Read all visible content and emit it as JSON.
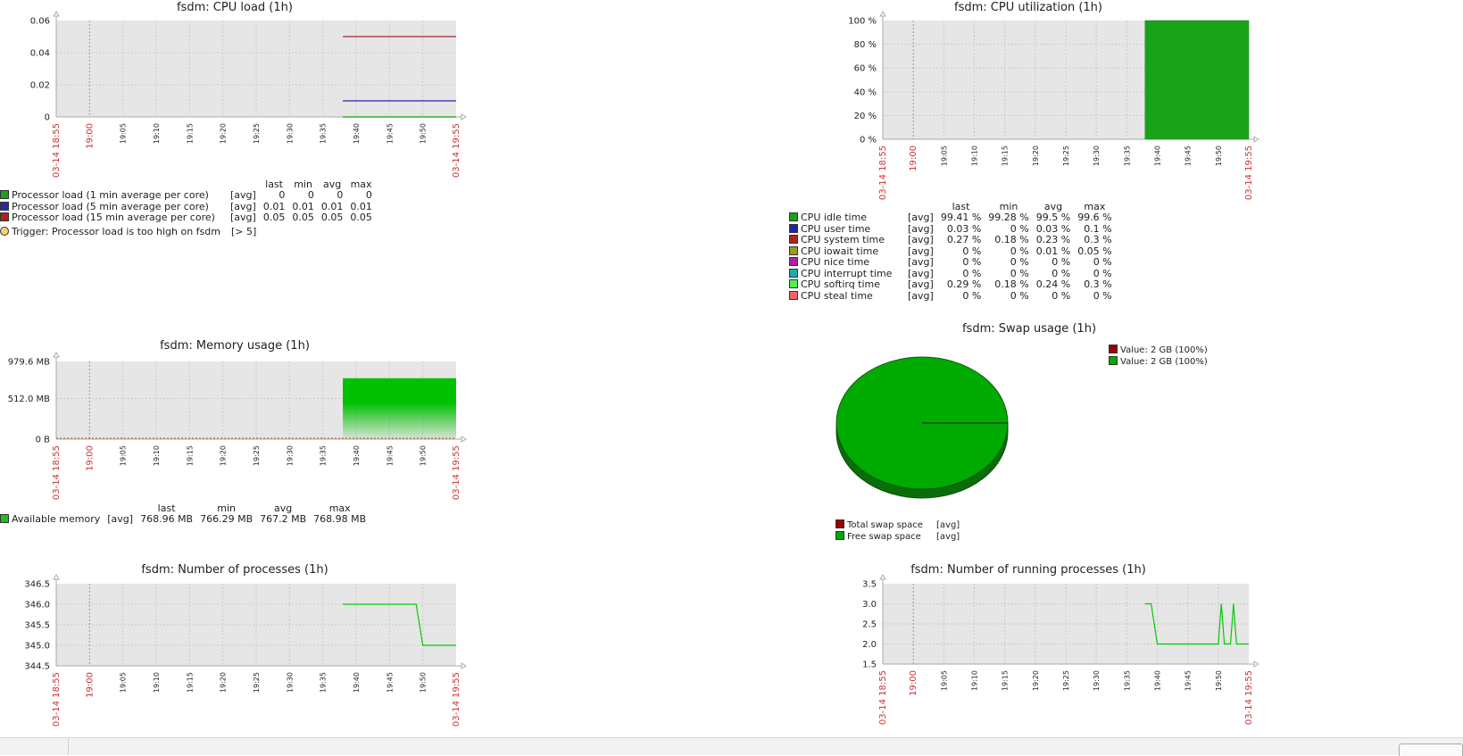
{
  "time_ticks": [
    "19:00",
    "19:05",
    "19:10",
    "19:15",
    "19:20",
    "19:25",
    "19:30",
    "19:35",
    "19:40",
    "19:45",
    "19:50"
  ],
  "time_start": "03-14 18:55",
  "time_end": "03-14 19:55",
  "colors": {
    "plot_bg": "#e6e6e6",
    "grid": "#c9c9c9",
    "red": "#cc3333",
    "green": "#1aa31a",
    "blue": "#2b2b9f",
    "darkred": "#aa2222"
  },
  "chart_data": [
    {
      "id": "cpu_load",
      "type": "line",
      "title": "fsdm: CPU load (1h)",
      "y_ticks": [
        "0",
        "0.02",
        "0.04",
        "0.06"
      ],
      "ylim": [
        0,
        0.06
      ],
      "x_range": [
        "18:55",
        "19:55"
      ],
      "series": [
        {
          "name": "Processor load (1 min average per core)",
          "color": "#00aa00",
          "x": [
            "19:38",
            "19:55"
          ],
          "y": [
            0,
            0
          ]
        },
        {
          "name": "Processor load (5 min average per core)",
          "color": "#2222aa",
          "x": [
            "19:38",
            "19:55"
          ],
          "y": [
            0.01,
            0.01
          ]
        },
        {
          "name": "Processor load (15 min average per core)",
          "color": "#aa2222",
          "x": [
            "19:38",
            "19:55"
          ],
          "y": [
            0.05,
            0.05
          ]
        }
      ]
    },
    {
      "id": "cpu_util",
      "type": "area",
      "title": "fsdm: CPU utilization (1h)",
      "y_ticks": [
        "0 %",
        "20 %",
        "40 %",
        "60 %",
        "80 %",
        "100 %"
      ],
      "ylim": [
        0,
        100
      ],
      "x_range": [
        "18:55",
        "19:55"
      ],
      "series": [
        {
          "name": "CPU idle time",
          "color": "#1aa31a",
          "x": [
            "19:38",
            "19:55"
          ],
          "y": [
            100,
            100
          ]
        }
      ]
    },
    {
      "id": "memory",
      "type": "area",
      "title": "fsdm: Memory usage (1h)",
      "y_ticks": [
        "0 B",
        "512.0 MB",
        "979.6 MB"
      ],
      "ylim": [
        0,
        979.6
      ],
      "x_range": [
        "18:55",
        "19:55"
      ],
      "series": [
        {
          "name": "Available memory",
          "color": "#00c000",
          "x": [
            "19:38",
            "19:55"
          ],
          "y": [
            768.96,
            768.96
          ]
        }
      ]
    },
    {
      "id": "swap",
      "type": "pie",
      "title": "fsdm: Swap usage (1h)",
      "slices": [
        {
          "name": "Total swap space",
          "label": "Value: 2 GB (100%)",
          "color": "#990000",
          "value": 0
        },
        {
          "name": "Free swap space",
          "label": "Value: 2 GB (100%)",
          "color": "#00aa00",
          "value": 100
        }
      ]
    },
    {
      "id": "processes",
      "type": "line",
      "title": "fsdm: Number of processes (1h)",
      "y_ticks": [
        "344.5",
        "345.0",
        "345.5",
        "346.0",
        "346.5"
      ],
      "ylim": [
        344.5,
        346.5
      ],
      "x_range": [
        "18:55",
        "19:55"
      ],
      "series": [
        {
          "name": "Number of processes",
          "color": "#00cc00",
          "x": [
            "19:38",
            "19:49",
            "19:50",
            "19:55"
          ],
          "y": [
            346,
            346,
            345,
            345
          ]
        }
      ]
    },
    {
      "id": "running",
      "type": "line",
      "title": "fsdm: Number of running processes (1h)",
      "y_ticks": [
        "1.5",
        "2.0",
        "2.5",
        "3.0",
        "3.5"
      ],
      "ylim": [
        1.5,
        3.5
      ],
      "x_range": [
        "18:55",
        "19:55"
      ],
      "series": [
        {
          "name": "Number of running processes",
          "color": "#00cc00",
          "x": [
            "19:38",
            "19:39",
            "19:40",
            "19:49",
            "19:50",
            "19:50.5",
            "19:51",
            "19:51.5",
            "19:52",
            "19:52.5",
            "19:53",
            "19:53.7",
            "19:55"
          ],
          "y": [
            3,
            3,
            2,
            2,
            2,
            3,
            2,
            2,
            2,
            3,
            2,
            2,
            2
          ]
        }
      ]
    }
  ],
  "legends": {
    "cpu_load": {
      "headers": [
        "last",
        "min",
        "avg",
        "max"
      ],
      "rows": [
        {
          "color": "#1aa31a",
          "name": "Processor load (1 min average per core)",
          "fn": "[avg]",
          "last": "0",
          "min": "0",
          "avg": "0",
          "max": "0"
        },
        {
          "color": "#2b2b9f",
          "name": "Processor load (5 min average per core)",
          "fn": "[avg]",
          "last": "0.01",
          "min": "0.01",
          "avg": "0.01",
          "max": "0.01"
        },
        {
          "color": "#aa2222",
          "name": "Processor load (15 min average per core)",
          "fn": "[avg]",
          "last": "0.05",
          "min": "0.05",
          "avg": "0.05",
          "max": "0.05"
        }
      ],
      "trigger": "Trigger: Processor load is too high on fsdm",
      "trigger_value": "[> 5]"
    },
    "cpu_util": {
      "headers": [
        "last",
        "min",
        "avg",
        "max"
      ],
      "rows": [
        {
          "color": "#1e9e1e",
          "name": "CPU idle time",
          "fn": "[avg]",
          "last": "99.41 %",
          "min": "99.28 %",
          "avg": "99.5 %",
          "max": "99.6 %"
        },
        {
          "color": "#2222aa",
          "name": "CPU user time",
          "fn": "[avg]",
          "last": "0.03 %",
          "min": "0 %",
          "avg": "0.03 %",
          "max": "0.1 %"
        },
        {
          "color": "#aa2222",
          "name": "CPU system time",
          "fn": "[avg]",
          "last": "0.27 %",
          "min": "0.18 %",
          "avg": "0.23 %",
          "max": "0.3 %"
        },
        {
          "color": "#9a9a22",
          "name": "CPU iowait time",
          "fn": "[avg]",
          "last": "0 %",
          "min": "0 %",
          "avg": "0.01 %",
          "max": "0.05 %"
        },
        {
          "color": "#aa22aa",
          "name": "CPU nice time",
          "fn": "[avg]",
          "last": "0 %",
          "min": "0 %",
          "avg": "0 %",
          "max": "0 %"
        },
        {
          "color": "#22aaaa",
          "name": "CPU interrupt time",
          "fn": "[avg]",
          "last": "0 %",
          "min": "0 %",
          "avg": "0 %",
          "max": "0 %"
        },
        {
          "color": "#55ee55",
          "name": "CPU softirq time",
          "fn": "[avg]",
          "last": "0.29 %",
          "min": "0.18 %",
          "avg": "0.24 %",
          "max": "0.3 %"
        },
        {
          "color": "#ee6666",
          "name": "CPU steal time",
          "fn": "[avg]",
          "last": "0 %",
          "min": "0 %",
          "avg": "0 %",
          "max": "0 %"
        }
      ]
    },
    "memory": {
      "headers": [
        "last",
        "min",
        "avg",
        "max"
      ],
      "rows": [
        {
          "color": "#22bb22",
          "name": "Available memory",
          "fn": "[avg]",
          "last": "768.96 MB",
          "min": "766.29 MB",
          "avg": "767.2 MB",
          "max": "768.98 MB"
        }
      ]
    },
    "swap": {
      "rows": [
        {
          "color": "#990000",
          "name": "Total swap space",
          "fn": "[avg]"
        },
        {
          "color": "#00aa00",
          "name": "Free swap space",
          "fn": "[avg]"
        }
      ],
      "values": [
        {
          "color": "#990000",
          "label": "Value: 2 GB (100%)"
        },
        {
          "color": "#00aa00",
          "label": "Value: 2 GB (100%)"
        }
      ]
    }
  }
}
